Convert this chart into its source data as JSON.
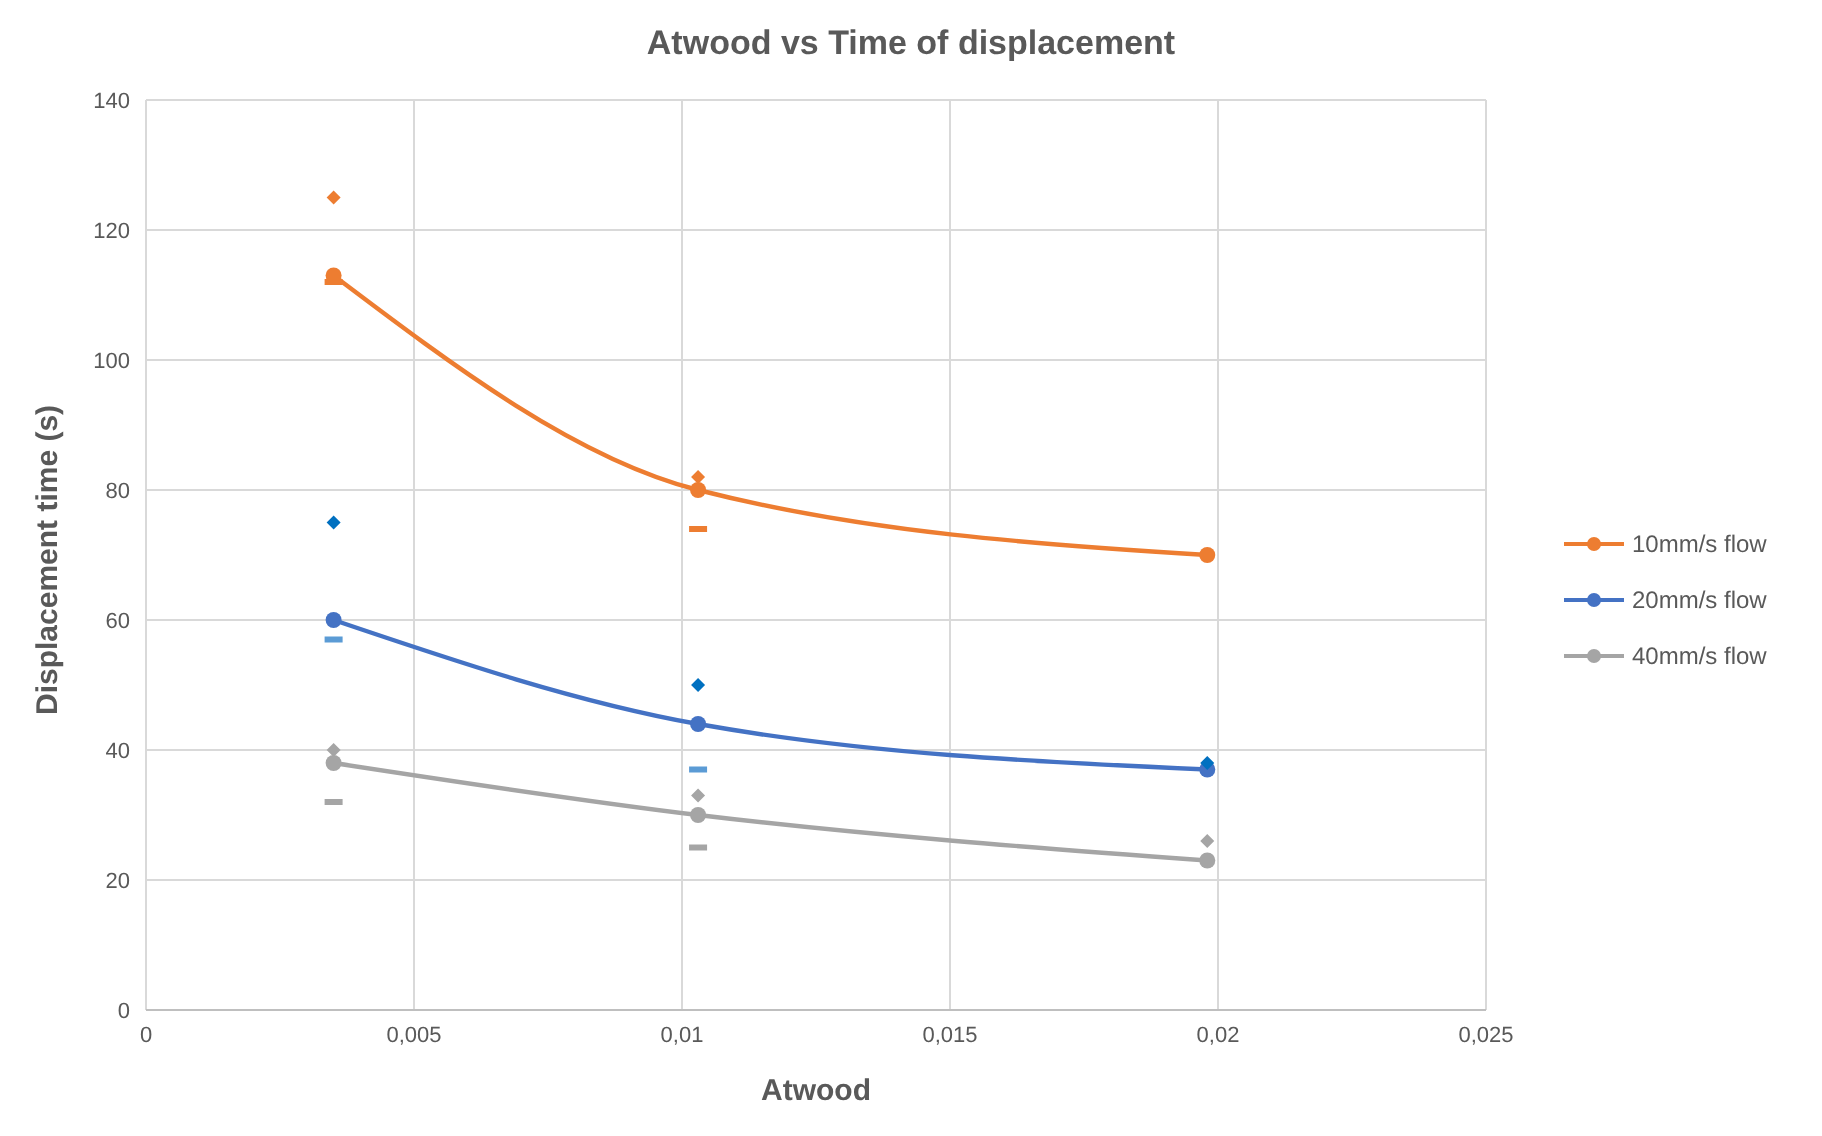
{
  "chart_data": {
    "type": "line",
    "title": "Atwood vs Time of displacement",
    "xlabel": "Atwood",
    "ylabel": "Displacement time (s)",
    "x": [
      0.0035,
      0.0103,
      0.0198
    ],
    "series": [
      {
        "name": "10mm/s flow",
        "color": "#ed7d31",
        "values": [
          113,
          80,
          70
        ],
        "marker": "circle"
      },
      {
        "name": "20mm/s flow",
        "color": "#4472c4",
        "values": [
          60,
          44,
          37
        ],
        "marker": "circle"
      },
      {
        "name": "40mm/s flow",
        "color": "#a5a5a5",
        "values": [
          38,
          30,
          23
        ],
        "marker": "circle"
      },
      {
        "type": "scatter",
        "color": "#ed7d31",
        "values": [
          125,
          82,
          null
        ],
        "marker": "diamond"
      },
      {
        "type": "scatter",
        "color": "#0070c0",
        "values": [
          75,
          50,
          38
        ],
        "marker": "diamond"
      },
      {
        "type": "scatter",
        "color": "#a5a5a5",
        "values": [
          40,
          33,
          26
        ],
        "marker": "diamond"
      },
      {
        "type": "scatter",
        "color": "#ed7d31",
        "values": [
          112,
          74,
          null
        ],
        "marker": "square"
      },
      {
        "type": "scatter",
        "color": "#5b9bd5",
        "values": [
          57,
          37,
          null
        ],
        "marker": "square"
      },
      {
        "type": "scatter",
        "color": "#a5a5a5",
        "values": [
          32,
          25,
          null
        ],
        "marker": "square"
      }
    ],
    "xlim": [
      0,
      0.025
    ],
    "xticks": [
      0,
      {
        "value": 0.005,
        "label": "0,005"
      },
      {
        "value": 0.01,
        "label": "0,01"
      },
      {
        "value": 0.015,
        "label": "0,015"
      },
      {
        "value": 0.02,
        "label": "0,02"
      },
      {
        "value": 0.025,
        "label": "0,025"
      }
    ],
    "ylim": [
      0,
      140
    ],
    "yticks": [
      0,
      20,
      40,
      60,
      80,
      100,
      120,
      140
    ],
    "grid": true,
    "legend": "right",
    "line_style": "solid"
  }
}
